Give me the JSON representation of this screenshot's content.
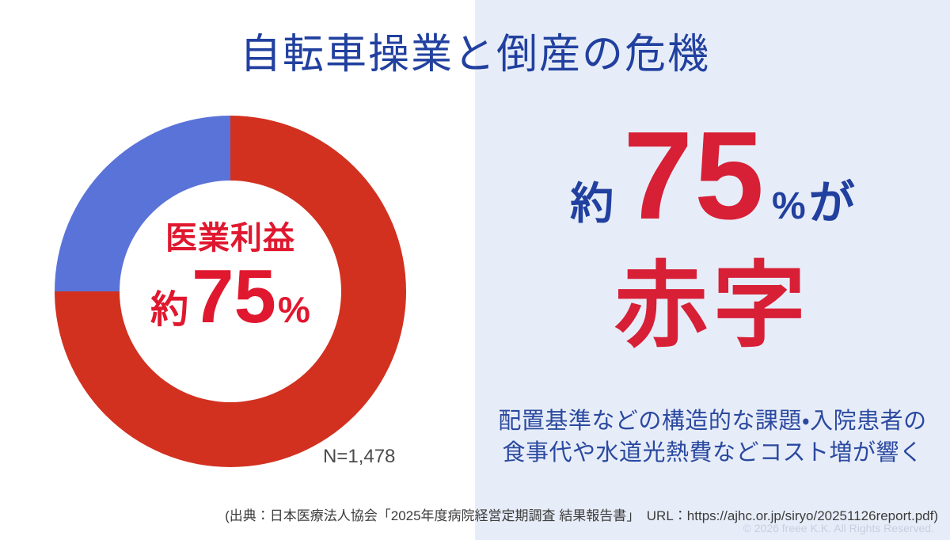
{
  "title": "自転車操業と倒産の危機",
  "colors": {
    "title_navy": "#21409f",
    "right_panel_bg": "#e7edf8",
    "donut_red": "#d23120",
    "donut_blue": "#5a73d8",
    "text_red": "#d71f36",
    "center_text_red": "#e0182f",
    "description_blue": "#2b49a0",
    "citation_gray": "#3c3c3c",
    "copyright_gray": "#c8cede"
  },
  "chart_data": {
    "type": "pie",
    "subtype": "donut",
    "segments": [
      {
        "name": "red-segment",
        "value": 75,
        "color": "#d23120"
      },
      {
        "name": "blue-segment",
        "value": 25,
        "color": "#5a73d8"
      }
    ],
    "start_angle_deg": 0,
    "direction": "clockwise",
    "center_label": "医業利益",
    "center_value_prefix": "約",
    "center_value": "75",
    "center_value_unit": "%",
    "sample_size_label": "N=1,478"
  },
  "highlight": {
    "prefix": "約",
    "value": "75",
    "percent": "%",
    "particle": "が",
    "word": "赤字"
  },
  "description": {
    "line1": "配置基準などの構造的な課題・入院患者の",
    "line2": "食事代や水道光熱費などコスト増が響く"
  },
  "footer": {
    "citation": "(出典：日本医療法人協会「2025年度病院経営定期調査 結果報告書」　URL：https://ajhc.or.jp/siryo/20251126report.pdf)",
    "copyright": "© 2026 freee K.K. All Rights Reserved."
  }
}
